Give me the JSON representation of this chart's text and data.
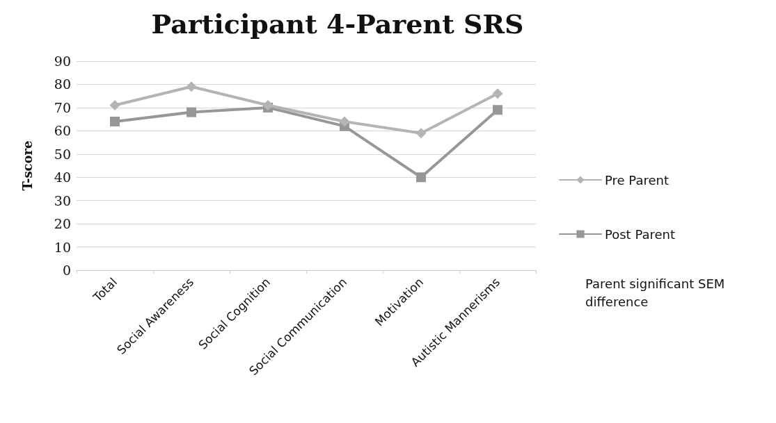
{
  "chart_data": {
    "type": "line",
    "title": "Participant 4-Parent SRS",
    "ylabel": "T-score",
    "categories": [
      "Total",
      "Social Awareness",
      "Social Cognition",
      "Social Communication",
      "Motivation",
      "Autistic Mannerisms"
    ],
    "series": [
      {
        "name": "Pre Parent",
        "color": "#b4b4b4",
        "marker": "diamond",
        "values": [
          71,
          79,
          71,
          64,
          59,
          76
        ]
      },
      {
        "name": "Post Parent",
        "color": "#979797",
        "marker": "square",
        "values": [
          64,
          68,
          70,
          62,
          40,
          69
        ]
      }
    ],
    "ylim": [
      0,
      90
    ],
    "yticks": [
      0,
      10,
      20,
      30,
      40,
      50,
      60,
      70,
      80,
      90
    ],
    "grid": "y",
    "legend": "right",
    "annotations": [
      "Parent significant SEM difference"
    ]
  }
}
